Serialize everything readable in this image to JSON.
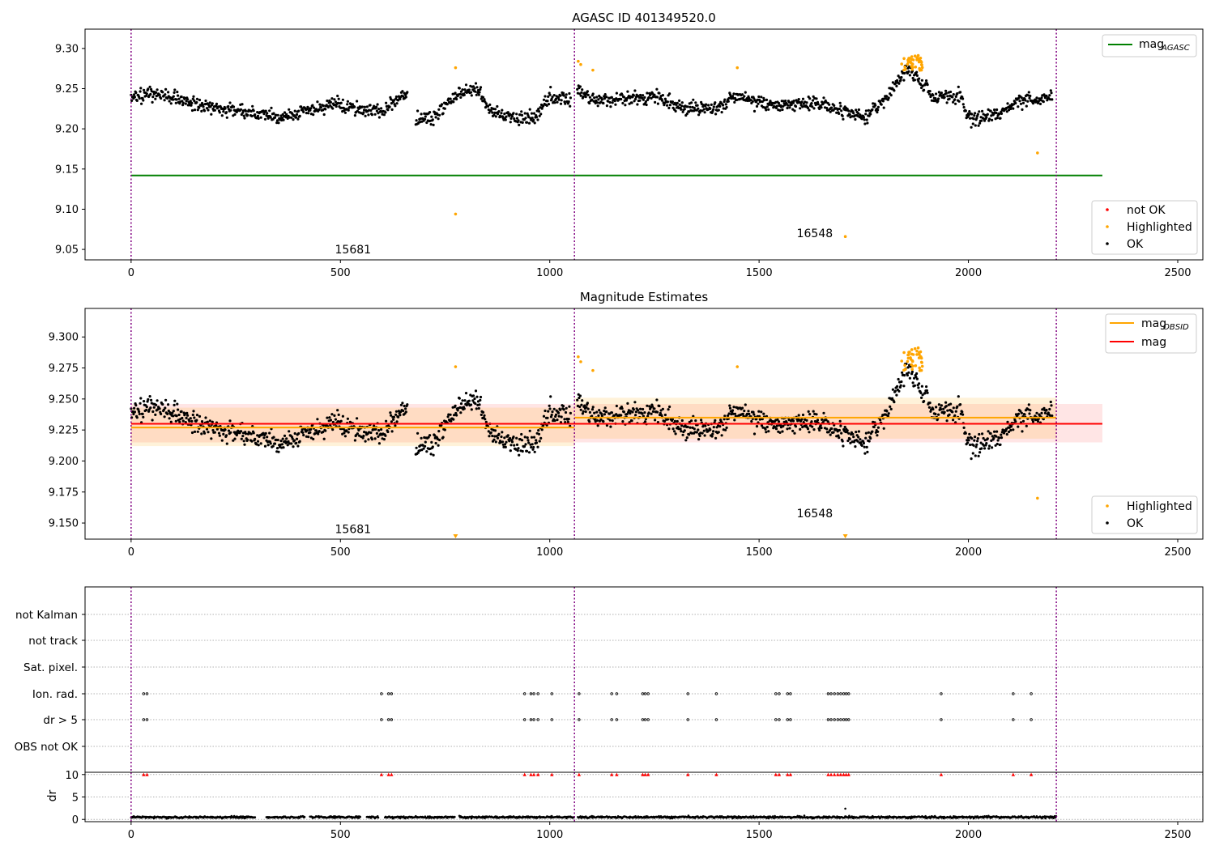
{
  "chart_data": [
    {
      "type": "scatter",
      "title": "AGASC ID 401349520.0",
      "xlim": [
        -110,
        2560
      ],
      "ylim": [
        9.037,
        9.324
      ],
      "x_ticks": [
        0,
        500,
        1000,
        1500,
        2000,
        2500
      ],
      "y_ticks": [
        9.05,
        9.1,
        9.15,
        9.2,
        9.25,
        9.3
      ],
      "y_tick_labels": [
        "9.05",
        "9.10",
        "9.15",
        "9.20",
        "9.25",
        "9.30"
      ],
      "obs_boundaries": [
        0,
        1059,
        2210
      ],
      "obsid_labels": [
        {
          "text": "15681",
          "x": 530,
          "y": 9.05
        },
        {
          "text": "16548",
          "x": 1633,
          "y": 9.07
        }
      ],
      "mag_agasc": {
        "value": 9.142,
        "x_range": [
          0,
          2320
        ]
      },
      "legend_top": {
        "position": "upper right",
        "entries": [
          {
            "label": "mag",
            "sub": "AGASC",
            "color": "#008000"
          }
        ]
      },
      "legend_bottom": {
        "position": "lower right",
        "entries": [
          {
            "label": "not OK",
            "color": "#ff0000"
          },
          {
            "label": "Highlighted",
            "color": "#ffa500"
          },
          {
            "label": "OK",
            "color": "#000000"
          }
        ]
      },
      "ok_series": {
        "color": "#000000",
        "segments": [
          {
            "x": [
              0,
              60,
              120,
              180,
              240,
              300,
              360,
              420,
              480,
              540,
              600,
              660
            ],
            "y": [
              9.238,
              9.245,
              9.236,
              9.228,
              9.222,
              9.22,
              9.214,
              9.222,
              9.23,
              9.226,
              9.222,
              9.245
            ]
          },
          {
            "x": [
              680,
              720,
              770,
              820,
              860,
              900,
              960,
              1000,
              1050
            ],
            "y": [
              9.212,
              9.212,
              9.24,
              9.25,
              9.222,
              9.215,
              9.212,
              9.238,
              9.236
            ]
          },
          {
            "x": [
              1065,
              1110,
              1180,
              1250,
              1320,
              1400,
              1440,
              1480,
              1540,
              1600,
              1650,
              1700,
              1750,
              1800,
              1850,
              1880,
              1920,
              1980,
              2000,
              2040,
              2080,
              2130,
              2200
            ],
            "y": [
              9.248,
              9.236,
              9.236,
              9.24,
              9.226,
              9.226,
              9.24,
              9.236,
              9.228,
              9.232,
              9.23,
              9.222,
              9.214,
              9.235,
              9.274,
              9.262,
              9.24,
              9.24,
              9.212,
              9.215,
              9.222,
              9.235,
              9.24
            ]
          }
        ]
      },
      "highlighted": {
        "color": "#ffa500",
        "points": [
          [
            775,
            9.276
          ],
          [
            775,
            9.094
          ],
          [
            1068,
            9.284
          ],
          [
            1074,
            9.28
          ],
          [
            1103,
            9.273
          ],
          [
            1448,
            9.276
          ],
          [
            1706,
            9.066
          ],
          [
            2165,
            9.17
          ]
        ],
        "clusters": [
          {
            "x_range": [
              1840,
              1890
            ],
            "y_range": [
              9.272,
              9.292
            ],
            "n": 40
          }
        ]
      }
    },
    {
      "type": "scatter",
      "title": "Magnitude Estimates",
      "xlim": [
        -110,
        2560
      ],
      "ylim": [
        9.137,
        9.323
      ],
      "x_ticks": [
        0,
        500,
        1000,
        1500,
        2000,
        2500
      ],
      "y_ticks": [
        9.15,
        9.175,
        9.2,
        9.225,
        9.25,
        9.275,
        9.3
      ],
      "y_tick_labels": [
        "9.150",
        "9.175",
        "9.200",
        "9.225",
        "9.250",
        "9.275",
        "9.300"
      ],
      "obs_boundaries": [
        0,
        1059,
        2210
      ],
      "obsid_labels": [
        {
          "text": "15681",
          "x": 530,
          "y": 9.145
        },
        {
          "text": "16548",
          "x": 1633,
          "y": 9.158
        }
      ],
      "mag": {
        "value": 9.23,
        "band": [
          9.215,
          9.246
        ],
        "x_range": [
          0,
          2320
        ],
        "color": "#ff0000"
      },
      "mag_obsid": [
        {
          "x_range": [
            0,
            1059
          ],
          "value": 9.227,
          "band": [
            9.212,
            9.243
          ]
        },
        {
          "x_range": [
            1059,
            2210
          ],
          "value": 9.235,
          "band": [
            9.218,
            9.251
          ]
        }
      ],
      "below_range_markers": [
        775,
        1706
      ],
      "legend_top": {
        "position": "upper right",
        "entries": [
          {
            "label": "mag",
            "sub": "OBSID",
            "color": "#ffa500"
          },
          {
            "label": "mag",
            "sub": "",
            "color": "#ff0000"
          }
        ]
      },
      "legend_bottom": {
        "position": "lower right",
        "entries": [
          {
            "label": "Highlighted",
            "color": "#ffa500"
          },
          {
            "label": "OK",
            "color": "#000000"
          }
        ]
      },
      "highlighted": {
        "color": "#ffa500",
        "points": [
          [
            775,
            9.276
          ],
          [
            1068,
            9.284
          ],
          [
            1074,
            9.28
          ],
          [
            1103,
            9.273
          ],
          [
            1448,
            9.276
          ],
          [
            2165,
            9.17
          ]
        ],
        "clusters": [
          {
            "x_range": [
              1840,
              1890
            ],
            "y_range": [
              9.272,
              9.292
            ],
            "n": 40
          }
        ]
      }
    },
    {
      "type": "scatter",
      "title": "",
      "xlim": [
        -110,
        2560
      ],
      "x_ticks": [
        0,
        500,
        1000,
        1500,
        2000,
        2500
      ],
      "flag_rows": [
        "not Kalman",
        "not track",
        "Sat. pixel.",
        "Ion. rad.",
        "dr > 5",
        "OBS not OK"
      ],
      "flag_x": [
        30,
        38,
        598,
        615,
        622,
        940,
        955,
        962,
        972,
        1005,
        1070,
        1148,
        1160,
        1222,
        1228,
        1235,
        1330,
        1398,
        1540,
        1548,
        1568,
        1575,
        1665,
        1672,
        1680,
        1688,
        1695,
        1702,
        1708,
        1714,
        1935,
        2107,
        2150
      ],
      "flagged_rows": [
        "Ion. rad.",
        "dr > 5"
      ],
      "obs_boundaries": [
        0,
        1059,
        2210
      ],
      "dr_panel": {
        "ylabel": "dr",
        "ylim": [
          -0.5,
          10.5
        ],
        "y_ticks": [
          0,
          5,
          10
        ],
        "y_tick_labels": [
          "0",
          "5",
          "10"
        ],
        "typical_dr": 0.5,
        "outlier": [
          1706,
          2.4
        ],
        "clipped_marker_value": 10,
        "clipped_color": "#ff0000"
      }
    }
  ]
}
